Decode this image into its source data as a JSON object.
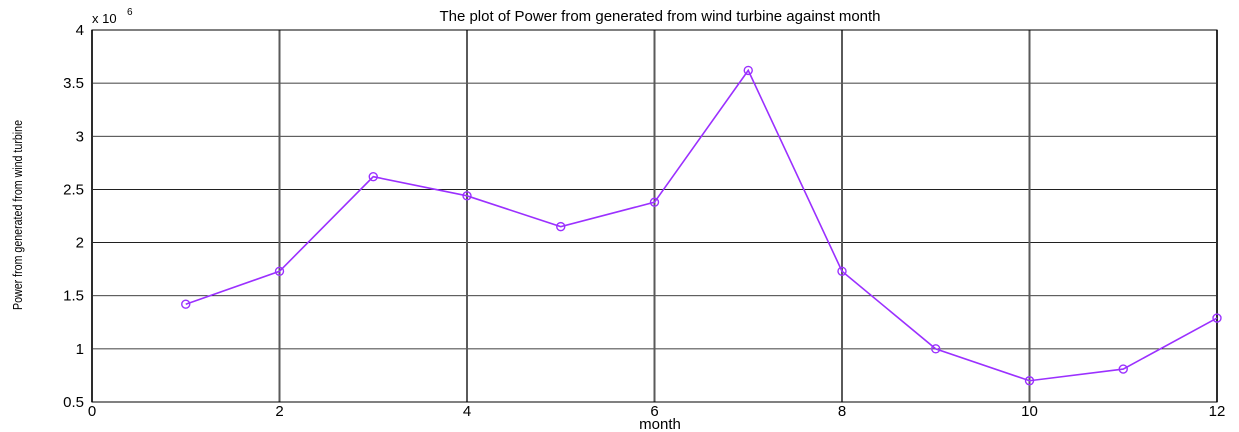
{
  "chart_data": {
    "type": "line",
    "title": "The plot of Power from generated from wind turbine against month",
    "xlabel": "month",
    "ylabel": "Power from generated from wind turbine",
    "exponent_label": "x 10",
    "exponent_power": "6",
    "xlim": [
      0,
      12
    ],
    "ylim": [
      0.5,
      4
    ],
    "xticks": [
      0,
      2,
      4,
      6,
      8,
      10,
      12
    ],
    "yticks": [
      0.5,
      1,
      1.5,
      2,
      2.5,
      3,
      3.5,
      4
    ],
    "ytick_labels": [
      "0.5",
      "1",
      "1.5",
      "2",
      "2.5",
      "3",
      "3.5",
      "4"
    ],
    "grid": true,
    "series": [
      {
        "color": "#9b30ff",
        "marker": "circle",
        "x": [
          1,
          2,
          3,
          4,
          5,
          6,
          7,
          8,
          9,
          10,
          11,
          12
        ],
        "y": [
          1.42,
          1.73,
          2.62,
          2.44,
          2.15,
          2.38,
          3.62,
          1.73,
          1.0,
          0.7,
          0.81,
          1.29
        ]
      }
    ]
  }
}
